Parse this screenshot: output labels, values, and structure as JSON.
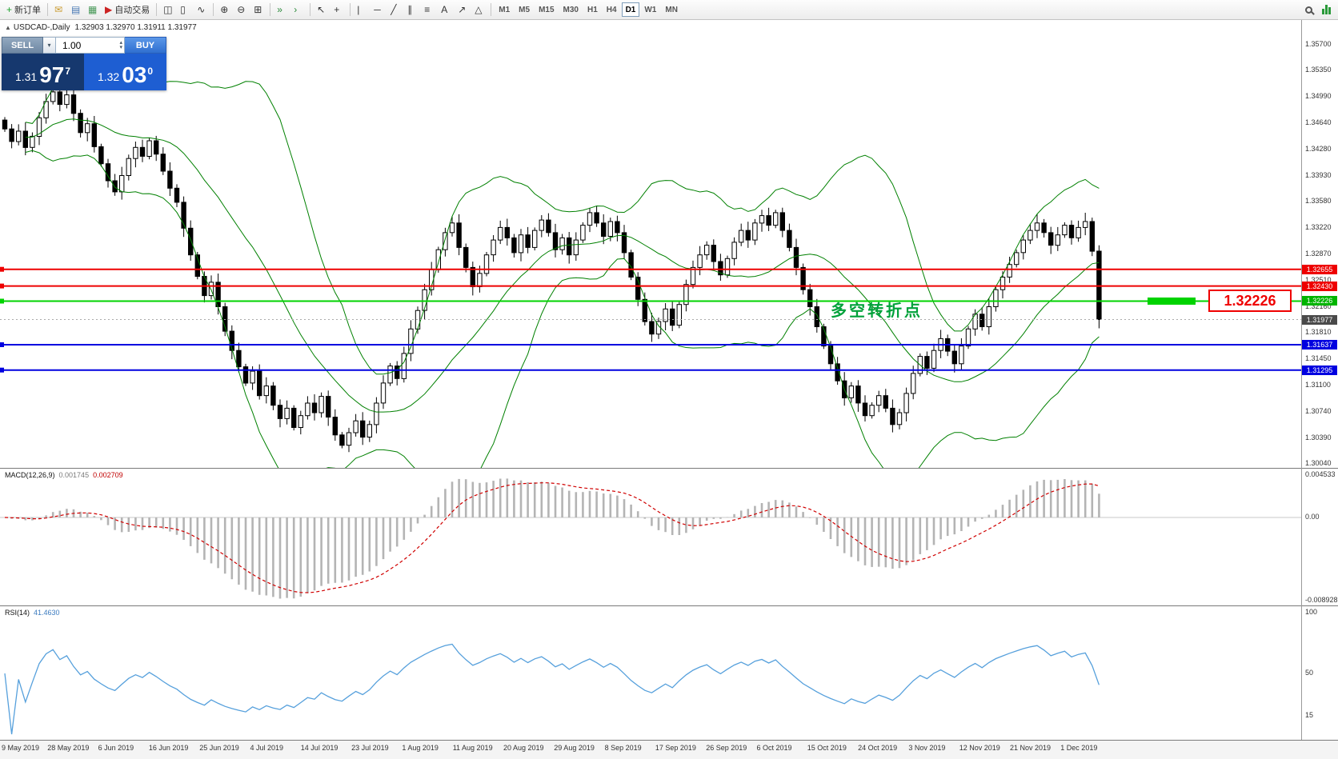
{
  "toolbar": {
    "buttons": [
      {
        "name": "new-order-button",
        "glyph": "+",
        "glyph_color": "#1fa32e",
        "label": "新订单"
      },
      {
        "name": "sep"
      },
      {
        "name": "mail-button",
        "glyph": "✉",
        "glyph_color": "#c99a2e"
      },
      {
        "name": "market-watch-button",
        "glyph": "▤",
        "glyph_color": "#4a7ab5"
      },
      {
        "name": "data-window-button",
        "glyph": "▦",
        "glyph_color": "#4a9a5a"
      },
      {
        "name": "auto-trading-button",
        "glyph": "▶",
        "glyph_color": "#cc2222",
        "label": "自动交易"
      },
      {
        "name": "sep"
      },
      {
        "name": "bar-chart-button",
        "glyph": "◫"
      },
      {
        "name": "candlestick-chart-button",
        "glyph": "▯"
      },
      {
        "name": "line-chart-button",
        "glyph": "∿"
      },
      {
        "name": "sep"
      },
      {
        "name": "zoom-in-button",
        "glyph": "⊕"
      },
      {
        "name": "zoom-out-button",
        "glyph": "⊖"
      },
      {
        "name": "tile-windows-button",
        "glyph": "⊞"
      },
      {
        "name": "sep"
      },
      {
        "name": "auto-scroll-button",
        "glyph": "»",
        "glyph_color": "#2a8a3a"
      },
      {
        "name": "chart-shift-button",
        "glyph": "›",
        "glyph_color": "#2a8a3a"
      },
      {
        "name": "sep"
      },
      {
        "name": "cursor-button",
        "glyph": "↖"
      },
      {
        "name": "crosshair-button",
        "glyph": "+"
      },
      {
        "name": "sep"
      },
      {
        "name": "vertical-line-button",
        "glyph": "|"
      },
      {
        "name": "horizontal-line-button",
        "glyph": "─"
      },
      {
        "name": "trendline-button",
        "glyph": "╱"
      },
      {
        "name": "channel-button",
        "glyph": "∥"
      },
      {
        "name": "fibonacci-button",
        "glyph": "≡"
      },
      {
        "name": "text-button",
        "glyph": "A"
      },
      {
        "name": "arrows-button",
        "glyph": "↗"
      },
      {
        "name": "shapes-button",
        "glyph": "△"
      },
      {
        "name": "sep"
      }
    ],
    "timeframes": [
      "M1",
      "M5",
      "M15",
      "M30",
      "H1",
      "H4",
      "D1",
      "W1",
      "MN"
    ],
    "active_timeframe": "D1"
  },
  "chart": {
    "shift_marker": "▲",
    "symbol_period": "USDCAD-,Daily",
    "ohlc": "1.32903 1.32970 1.31911 1.31977",
    "annotation": "多空转折点",
    "pivot_price_label": "1.32226"
  },
  "trade_panel": {
    "sell_label": "SELL",
    "buy_label": "BUY",
    "volume": "1.00",
    "sell_big": "1.31",
    "sell_mid": "97",
    "sell_sup": "7",
    "buy_big": "1.32",
    "buy_mid": "03",
    "buy_sup": "0"
  },
  "price_axis": {
    "labels": [
      "1.35700",
      "1.35350",
      "1.34990",
      "1.34640",
      "1.34280",
      "1.33930",
      "1.33580",
      "1.33220",
      "1.32870",
      "1.32510",
      "1.32160",
      "1.31810",
      "1.31450",
      "1.31100",
      "1.30740",
      "1.30390",
      "1.30040"
    ],
    "range_top": 1.3575,
    "range_bottom": 1.3004
  },
  "levels": [
    {
      "price": "1.32655",
      "color": "#ee0000",
      "type": "resistance"
    },
    {
      "price": "1.32430",
      "color": "#ee0000",
      "type": "resistance"
    },
    {
      "price": "1.32226",
      "color": "#00b400",
      "type": "pivot"
    },
    {
      "price": "1.31977",
      "color": "#4a4a4a",
      "type": "current"
    },
    {
      "price": "1.31637",
      "color": "#0000e0",
      "type": "support"
    },
    {
      "price": "1.31295",
      "color": "#0000e0",
      "type": "support"
    }
  ],
  "macd": {
    "name": "MACD(12,26,9)",
    "value_main": "0.001745",
    "value_signal": "0.002709",
    "axis": [
      "0.004533",
      "0.00",
      "-0.008928"
    ]
  },
  "rsi": {
    "name": "RSI(14)",
    "value": "41.4630",
    "axis": [
      "100",
      "50",
      "15"
    ]
  },
  "dates": [
    "9 May 2019",
    "28 May 2019",
    "6 Jun 2019",
    "16 Jun 2019",
    "25 Jun 2019",
    "4 Jul 2019",
    "14 Jul 2019",
    "23 Jul 2019",
    "1 Aug 2019",
    "11 Aug 2019",
    "20 Aug 2019",
    "29 Aug 2019",
    "8 Sep 2019",
    "17 Sep 2019",
    "26 Sep 2019",
    "6 Oct 2019",
    "15 Oct 2019",
    "24 Oct 2019",
    "3 Nov 2019",
    "12 Nov 2019",
    "21 Nov 2019",
    "1 Dec 2019"
  ],
  "chart_data": {
    "type": "candlestick",
    "symbol": "USDCAD",
    "period": "Daily",
    "ylim": [
      1.3004,
      1.3575
    ],
    "closes": [
      1.3455,
      1.3438,
      1.3452,
      1.343,
      1.3445,
      1.347,
      1.3492,
      1.3505,
      1.3488,
      1.3501,
      1.3476,
      1.345,
      1.3462,
      1.3431,
      1.3408,
      1.3385,
      1.337,
      1.3392,
      1.3415,
      1.343,
      1.3418,
      1.3439,
      1.3421,
      1.3398,
      1.3375,
      1.3356,
      1.3321,
      1.3285,
      1.3256,
      1.323,
      1.3248,
      1.3215,
      1.3182,
      1.3156,
      1.3134,
      1.3112,
      1.3128,
      1.3095,
      1.3108,
      1.3082,
      1.3064,
      1.3078,
      1.3052,
      1.3068,
      1.3085,
      1.3072,
      1.3094,
      1.3066,
      1.3042,
      1.3028,
      1.3045,
      1.3061,
      1.3039,
      1.3056,
      1.3085,
      1.3112,
      1.3135,
      1.3118,
      1.3152,
      1.3185,
      1.321,
      1.3238,
      1.3265,
      1.3292,
      1.3315,
      1.3328,
      1.3295,
      1.3268,
      1.3242,
      1.326,
      1.3285,
      1.3305,
      1.3322,
      1.3308,
      1.3288,
      1.3312,
      1.3295,
      1.3318,
      1.3332,
      1.3315,
      1.3292,
      1.3308,
      1.3285,
      1.3305,
      1.3325,
      1.3342,
      1.3328,
      1.331,
      1.333,
      1.3315,
      1.3288,
      1.3255,
      1.3225,
      1.3195,
      1.3178,
      1.3195,
      1.3212,
      1.319,
      1.3218,
      1.3245,
      1.3268,
      1.3285,
      1.3298,
      1.3276,
      1.3258,
      1.328,
      1.3302,
      1.3318,
      1.3305,
      1.3328,
      1.3338,
      1.3325,
      1.3342,
      1.3318,
      1.3295,
      1.3268,
      1.3238,
      1.3215,
      1.3188,
      1.3162,
      1.3138,
      1.3115,
      1.3092,
      1.3108,
      1.3085,
      1.3068,
      1.3082,
      1.3095,
      1.3078,
      1.3056,
      1.3072,
      1.3098,
      1.3125,
      1.3148,
      1.3132,
      1.3156,
      1.3172,
      1.3155,
      1.3138,
      1.3162,
      1.3185,
      1.3205,
      1.3188,
      1.3215,
      1.3238,
      1.3255,
      1.3272,
      1.3288,
      1.3305,
      1.3318,
      1.3328,
      1.3315,
      1.3298,
      1.3312,
      1.3325,
      1.3308,
      1.3322,
      1.333,
      1.329,
      1.31977
    ]
  }
}
